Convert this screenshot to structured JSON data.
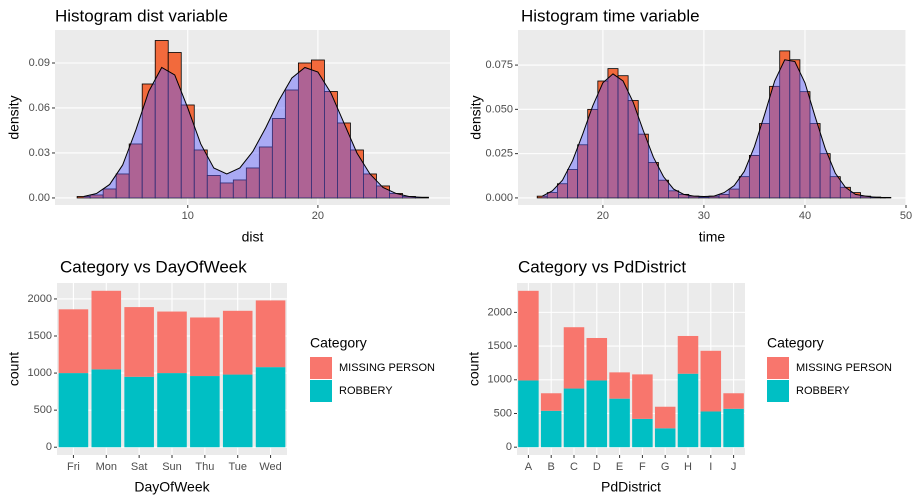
{
  "chart_data": [
    {
      "type": "histogram",
      "title": "Histogram dist variable",
      "x_label": "dist",
      "y_label": "density",
      "bins": [
        1.5,
        2.5,
        3.5,
        4.5,
        5.5,
        6.5,
        7.5,
        8.5,
        9.5,
        10.5,
        11.5,
        12.5,
        13.5,
        14.5,
        15.5,
        16.5,
        17.5,
        18.5,
        19.5,
        20.5,
        21.5,
        22.5,
        23.5,
        24.5,
        25.5,
        26.5,
        27.5,
        28.5
      ],
      "values": [
        0.001,
        0.002,
        0.006,
        0.016,
        0.036,
        0.076,
        0.105,
        0.097,
        0.062,
        0.032,
        0.015,
        0.01,
        0.012,
        0.02,
        0.034,
        0.053,
        0.072,
        0.09,
        0.092,
        0.071,
        0.05,
        0.032,
        0.016,
        0.008,
        0.003,
        0.001,
        0.0005
      ],
      "color": "#f26a3c",
      "density_color": "#5a5aff",
      "density": {
        "x": [
          2,
          3,
          4,
          5,
          6,
          7,
          8,
          9,
          10,
          11,
          12,
          13,
          14,
          15,
          16,
          17,
          18,
          19,
          20,
          21,
          22,
          23,
          24,
          25,
          26,
          27,
          28
        ],
        "y": [
          0.001,
          0.003,
          0.009,
          0.022,
          0.045,
          0.071,
          0.087,
          0.082,
          0.06,
          0.036,
          0.02,
          0.016,
          0.02,
          0.031,
          0.047,
          0.065,
          0.08,
          0.087,
          0.084,
          0.07,
          0.05,
          0.03,
          0.016,
          0.007,
          0.003,
          0.001,
          0.0003
        ]
      },
      "xlim": [
        -0.2,
        30.15
      ],
      "xticks": [
        10,
        20
      ],
      "ylim": [
        -0.0047,
        0.112
      ],
      "yticks": [
        {
          "value": 0,
          "label": "0.00"
        },
        {
          "value": 0.03,
          "label": "0.03"
        },
        {
          "value": 0.06,
          "label": "0.06"
        },
        {
          "value": 0.09,
          "label": "0.09"
        }
      ],
      "grid": true
    },
    {
      "type": "histogram",
      "title": "Histogram time variable",
      "x_label": "time",
      "y_label": "density",
      "bins": [
        13.5,
        14.5,
        15.5,
        16.5,
        17.5,
        18.5,
        19.5,
        20.5,
        21.5,
        22.5,
        23.5,
        24.5,
        25.5,
        26.5,
        27.5,
        28.5,
        29.5,
        30.5,
        31.5,
        32.5,
        33.5,
        34.5,
        35.5,
        36.5,
        37.5,
        38.5,
        39.5,
        40.5,
        41.5,
        42.5,
        43.5,
        44.5,
        45.5,
        46.5,
        47.5,
        48.5
      ],
      "values": [
        0.001,
        0.003,
        0.008,
        0.016,
        0.03,
        0.05,
        0.066,
        0.073,
        0.069,
        0.055,
        0.036,
        0.02,
        0.01,
        0.004,
        0.002,
        0.001,
        0.0005,
        0.001,
        0.002,
        0.005,
        0.012,
        0.024,
        0.042,
        0.063,
        0.083,
        0.078,
        0.06,
        0.042,
        0.025,
        0.012,
        0.006,
        0.003,
        0.001,
        0.0005,
        0.0003
      ],
      "color": "#f26a3c",
      "density_color": "#5a5aff",
      "density": {
        "x": [
          14,
          15,
          16,
          17,
          18,
          19,
          20,
          21,
          22,
          23,
          24,
          25,
          26,
          27,
          28,
          29,
          30,
          31,
          32,
          33,
          34,
          35,
          36,
          37,
          38,
          39,
          40,
          41,
          42,
          43,
          44,
          45,
          46,
          47,
          48
        ],
        "y": [
          0.001,
          0.004,
          0.01,
          0.021,
          0.036,
          0.052,
          0.065,
          0.07,
          0.066,
          0.054,
          0.038,
          0.023,
          0.012,
          0.005,
          0.002,
          0.001,
          0.0008,
          0.001,
          0.003,
          0.007,
          0.015,
          0.029,
          0.047,
          0.066,
          0.078,
          0.077,
          0.065,
          0.046,
          0.028,
          0.014,
          0.006,
          0.002,
          0.001,
          0.0003,
          0.0001
        ]
      },
      "xlim": [
        11.6,
        50
      ],
      "xticks": [
        20,
        30,
        40,
        50
      ],
      "ylim": [
        -0.004,
        0.0948
      ],
      "yticks": [
        {
          "value": 0,
          "label": "0.000"
        },
        {
          "value": 0.025,
          "label": "0.025"
        },
        {
          "value": 0.05,
          "label": "0.050"
        },
        {
          "value": 0.075,
          "label": "0.075"
        }
      ],
      "grid": true
    },
    {
      "type": "stacked_bar",
      "title": "Category vs DayOfWeek",
      "x_label": "DayOfWeek",
      "y_label": "count",
      "legend_title": "Category",
      "categories": [
        "Fri",
        "Mon",
        "Sat",
        "Sun",
        "Thu",
        "Tue",
        "Wed"
      ],
      "series": [
        {
          "name": "MISSING PERSON",
          "color": "#F8766D",
          "values": [
            860,
            1060,
            940,
            830,
            790,
            860,
            900
          ]
        },
        {
          "name": "ROBBERY",
          "color": "#00BFC4",
          "values": [
            1000,
            1050,
            950,
            1000,
            960,
            980,
            1080
          ]
        }
      ],
      "ylim": [
        -105,
        2215
      ],
      "yticks": [
        0,
        500,
        1000,
        1500,
        2000
      ],
      "grid": true
    },
    {
      "type": "stacked_bar",
      "title": "Category vs PdDistrict",
      "x_label": "PdDistrict",
      "y_label": "count",
      "legend_title": "Category",
      "categories": [
        "A",
        "B",
        "C",
        "D",
        "E",
        "F",
        "G",
        "H",
        "I",
        "J"
      ],
      "series": [
        {
          "name": "MISSING PERSON",
          "color": "#F8766D",
          "values": [
            1330,
            260,
            910,
            630,
            390,
            660,
            320,
            560,
            900,
            230
          ]
        },
        {
          "name": "ROBBERY",
          "color": "#00BFC4",
          "values": [
            990,
            540,
            870,
            990,
            720,
            420,
            280,
            1090,
            530,
            570
          ]
        }
      ],
      "ylim": [
        -116,
        2436
      ],
      "yticks": [
        0,
        500,
        1000,
        1500,
        2000
      ],
      "grid": true
    }
  ]
}
